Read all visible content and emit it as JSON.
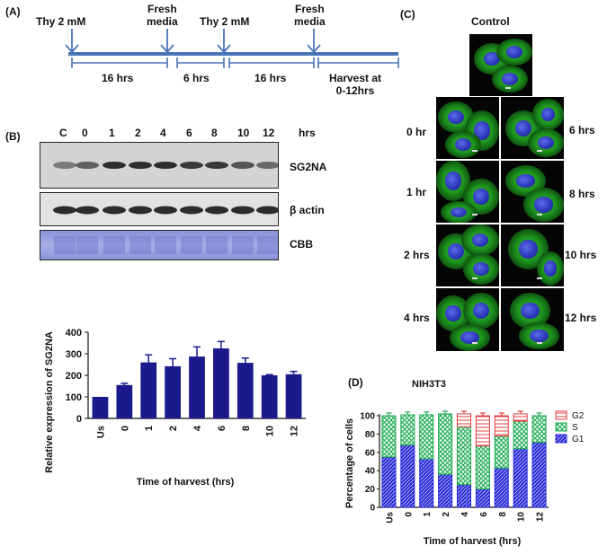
{
  "panel_a": {
    "tag": "(A)",
    "events": [
      "Thy 2 mM",
      "Fresh\nmedia",
      "Thy 2 mM",
      "Fresh\nmedia"
    ],
    "durations": [
      "16 hrs",
      "6 hrs",
      "16 hrs",
      "Harvest at\n0-12hrs"
    ]
  },
  "panel_b": {
    "tag": "(B)",
    "lanes": [
      "C",
      "0",
      "1",
      "2",
      "4",
      "6",
      "8",
      "10",
      "12"
    ],
    "lanes_unit": "hrs",
    "blot_labels": [
      "SG2NA",
      "β actin",
      "CBB"
    ],
    "chart_data": {
      "type": "bar",
      "categories": [
        "Us",
        "0",
        "1",
        "2",
        "4",
        "6",
        "8",
        "10",
        "12"
      ],
      "values": [
        100,
        155,
        260,
        242,
        287,
        325,
        258,
        200,
        205
      ],
      "errors": [
        0,
        8,
        35,
        35,
        45,
        32,
        22,
        3,
        13
      ],
      "xlabel": "Time of harvest (hrs)",
      "ylabel": "Relative expression of SG2NA",
      "ylim": [
        0,
        400
      ],
      "yticks": [
        0,
        100,
        200,
        300,
        400
      ],
      "color": "#1a1a8c"
    }
  },
  "panel_c": {
    "tag": "(C)",
    "control_label": "Control",
    "left_labels": [
      "0 hr",
      "1 hr",
      "2 hrs",
      "4 hrs"
    ],
    "right_labels": [
      "6 hrs",
      "8 hrs",
      "10 hrs",
      "12 hrs"
    ]
  },
  "panel_d": {
    "tag": "(D)",
    "chart_data": {
      "type": "bar",
      "title": "NIH3T3",
      "categories": [
        "Us",
        "0",
        "1",
        "2",
        "4",
        "6",
        "8",
        "10",
        "12"
      ],
      "series": [
        {
          "name": "G1",
          "values": [
            55,
            68,
            53,
            36,
            25,
            20,
            43,
            64,
            71
          ],
          "color": "#2b2bd6"
        },
        {
          "name": "S",
          "values": [
            45,
            33,
            48,
            66,
            63,
            47,
            35,
            30,
            29
          ],
          "color": "#22aa55"
        },
        {
          "name": "G2",
          "values": [
            0,
            0,
            0,
            0,
            14,
            33,
            22,
            8,
            0
          ],
          "color": "#e04040"
        }
      ],
      "xlabel": "Time of harvest (hrs)",
      "ylabel": "Percentage of cells",
      "ylim": [
        0,
        100
      ],
      "yticks": [
        0,
        20,
        40,
        60,
        80,
        100
      ],
      "legend": "top-right"
    }
  }
}
